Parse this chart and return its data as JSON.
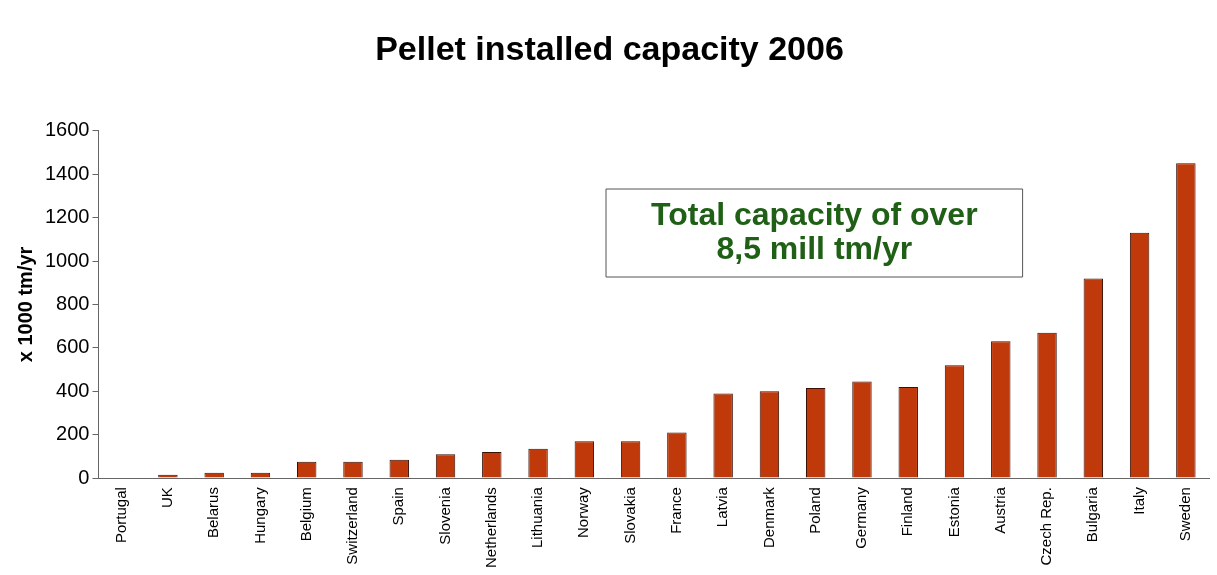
{
  "chart_data": {
    "type": "bar",
    "title": "Pellet installed capacity 2006",
    "ylabel": "x 1000 tm/yr",
    "categories": [
      "Portugal",
      "UK",
      "Belarus",
      "Hungary",
      "Belgium",
      "Switzerland",
      "Spain",
      "Slovenia",
      "Netherlands",
      "Lithuania",
      "Norway",
      "Slovakia",
      "France",
      "Latvia",
      "Denmark",
      "Poland",
      "Germany",
      "Finland",
      "Estonia",
      "Austria",
      "Czech Rep.",
      "Bulgaria",
      "Italy",
      "Sweden"
    ],
    "values": [
      0,
      15,
      25,
      25,
      75,
      75,
      85,
      110,
      120,
      135,
      170,
      170,
      210,
      390,
      400,
      415,
      445,
      420,
      520,
      630,
      670,
      920,
      1130,
      1450
    ],
    "color": "#c0390b",
    "ylim": [
      0,
      1600
    ],
    "yticks": [
      0,
      200,
      400,
      600,
      800,
      1000,
      1200,
      1400,
      1600
    ],
    "grid": false,
    "legend": false,
    "annotations": [
      "Total capacity of over\n8,5 mill tm/yr"
    ]
  }
}
